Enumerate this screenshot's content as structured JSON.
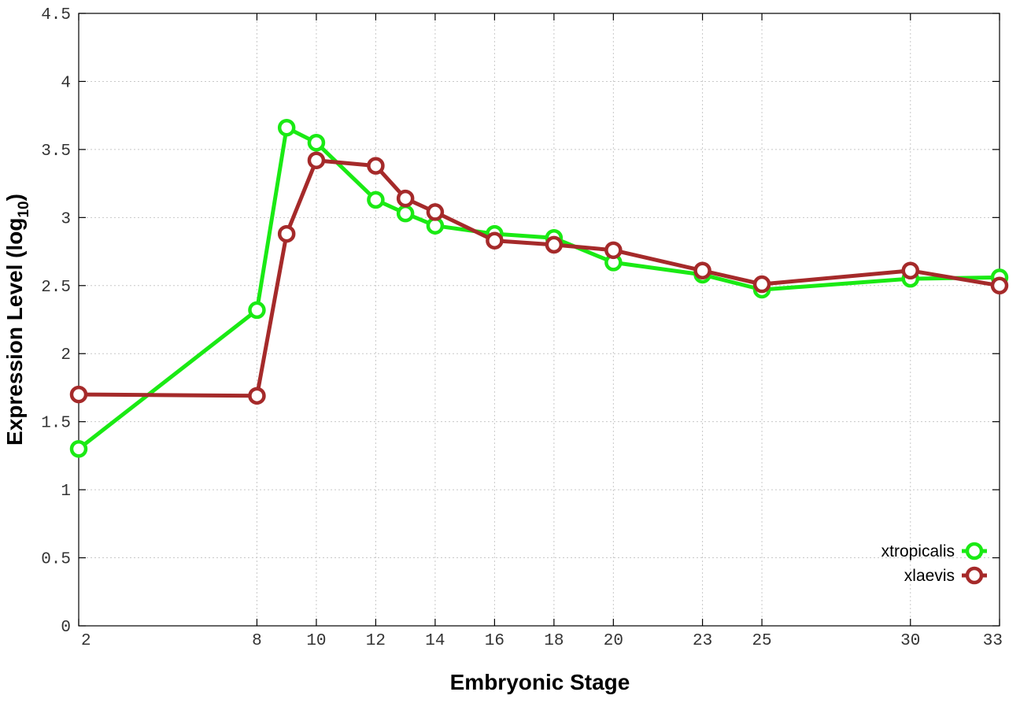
{
  "chart_data": {
    "type": "line",
    "xlabel": "Embryonic Stage",
    "ylabel_main": "Expression Level (log",
    "ylabel_sub": "10",
    "ylabel_close": ")",
    "ylim": [
      0,
      4.5
    ],
    "xlim": [
      2,
      33
    ],
    "grid": true,
    "legend_position": "bottom-right",
    "x_ticks": [
      2,
      8,
      10,
      12,
      14,
      16,
      18,
      20,
      23,
      25,
      30,
      33
    ],
    "y_ticks": [
      0,
      0.5,
      1,
      1.5,
      2,
      2.5,
      3,
      3.5,
      4,
      4.5
    ],
    "y_tick_labels": [
      "0",
      "0.5",
      "1",
      "1.5",
      "2",
      "2.5",
      "3",
      "3.5",
      "4",
      "4.5"
    ],
    "series": [
      {
        "name": "xtropicalis",
        "color": "#1aea14",
        "x": [
          2,
          8,
          9,
          10,
          12,
          13,
          14,
          16,
          18,
          20,
          23,
          25,
          30,
          33
        ],
        "y": [
          1.3,
          2.32,
          3.66,
          3.55,
          3.13,
          3.03,
          2.94,
          2.88,
          2.85,
          2.67,
          2.58,
          2.47,
          2.55,
          2.56
        ]
      },
      {
        "name": "xlaevis",
        "color": "#a52a2a",
        "x": [
          2,
          8,
          9,
          10,
          12,
          13,
          14,
          16,
          18,
          20,
          23,
          25,
          30,
          33
        ],
        "y": [
          1.7,
          1.69,
          2.88,
          3.42,
          3.38,
          3.14,
          3.04,
          2.83,
          2.8,
          2.76,
          2.61,
          2.51,
          2.61,
          2.5
        ]
      }
    ]
  }
}
